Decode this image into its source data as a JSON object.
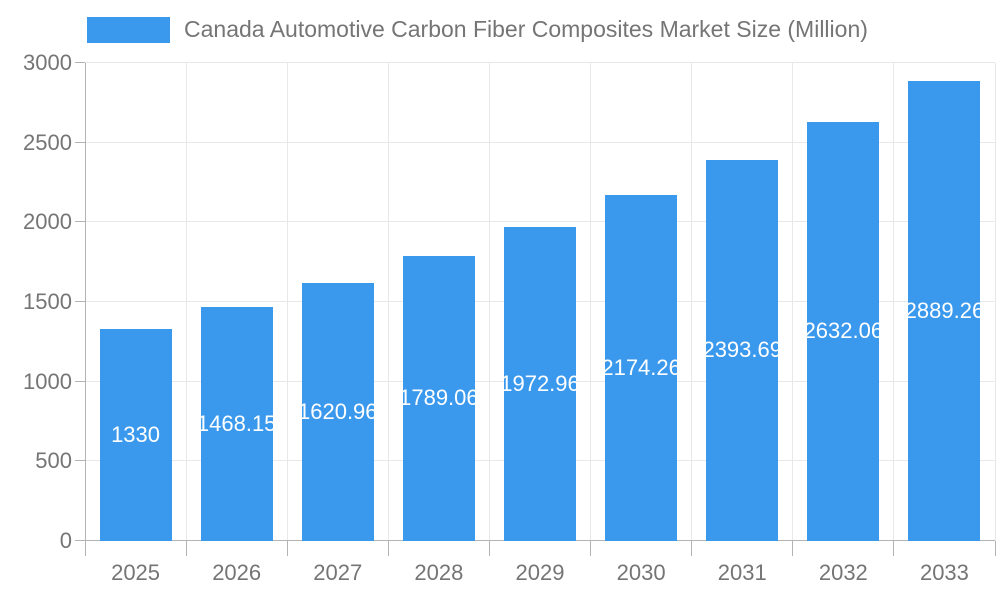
{
  "legend": {
    "label": "Canada Automotive Carbon Fiber Composites Market Size (Million)"
  },
  "chart_data": {
    "type": "bar",
    "title": "Canada Automotive Carbon Fiber Composites Market Size (Million)",
    "xlabel": "",
    "ylabel": "",
    "categories": [
      "2025",
      "2026",
      "2027",
      "2028",
      "2029",
      "2030",
      "2031",
      "2032",
      "2033"
    ],
    "values": [
      1330,
      1468.15,
      1620.96,
      1789.06,
      1972.96,
      2174.26,
      2393.69,
      2632.06,
      2889.26
    ],
    "bar_labels": [
      "1330",
      "1468.15",
      "1620.96",
      "1789.06",
      "1972.96",
      "2174.26",
      "2393.69",
      "2632.06",
      "2889.26"
    ],
    "ylim": [
      0,
      3000
    ],
    "yticks": [
      0,
      500,
      1000,
      1500,
      2000,
      2500,
      3000
    ],
    "grid": true,
    "legend_position": "top",
    "colors": {
      "bar": "#3b99ed",
      "grid": "#e8e8e8",
      "axis": "#b3b3b3",
      "text": "#757575",
      "bar_label": "#ffffff"
    }
  }
}
